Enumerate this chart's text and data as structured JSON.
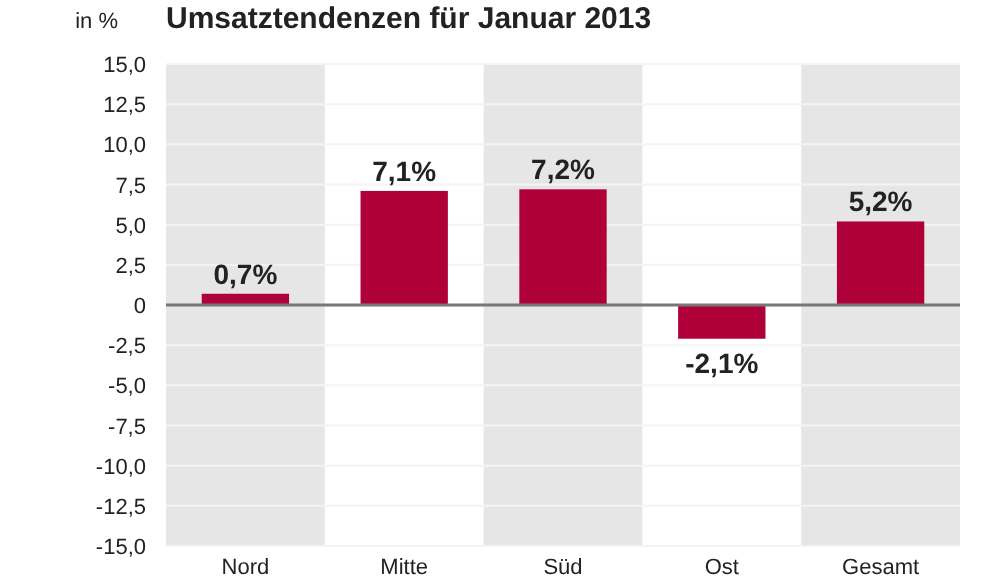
{
  "chart_data": {
    "type": "bar",
    "title": "Umsatztendenzen für Januar 2013",
    "ylabel": "in %",
    "categories": [
      "Nord",
      "Mitte",
      "Süd",
      "Ost",
      "Gesamt"
    ],
    "values": [
      0.7,
      7.1,
      7.2,
      -2.1,
      5.2
    ],
    "color": "#b0003a",
    "value_labels": [
      "0,7%",
      "7,1%",
      "7,2%",
      "-2,1%",
      "5,2%"
    ],
    "ylim": [
      -15,
      15
    ],
    "yticks": [
      {
        "value": -15,
        "label": "-15,0"
      },
      {
        "value": -12.5,
        "label": "-12,5"
      },
      {
        "value": -10,
        "label": "-10,0"
      },
      {
        "value": -7.5,
        "label": "-7,5"
      },
      {
        "value": -5,
        "label": "-5,0"
      },
      {
        "value": -2.5,
        "label": "-2,5"
      },
      {
        "value": 0,
        "label": "0"
      },
      {
        "value": 2.5,
        "label": "2,5"
      },
      {
        "value": 5,
        "label": "5,0"
      },
      {
        "value": 7.5,
        "label": "7,5"
      },
      {
        "value": 10,
        "label": "10,0"
      },
      {
        "value": 12.5,
        "label": "12,5"
      },
      {
        "value": 15,
        "label": "15,0"
      }
    ],
    "grid": "y"
  }
}
